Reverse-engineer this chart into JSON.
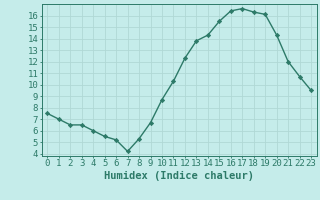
{
  "x": [
    0,
    1,
    2,
    3,
    4,
    5,
    6,
    7,
    8,
    9,
    10,
    11,
    12,
    13,
    14,
    15,
    16,
    17,
    18,
    19,
    20,
    21,
    22,
    23
  ],
  "y": [
    7.5,
    7.0,
    6.5,
    6.5,
    6.0,
    5.5,
    5.2,
    4.2,
    5.3,
    6.7,
    8.7,
    10.3,
    12.3,
    13.8,
    14.3,
    15.5,
    16.4,
    16.6,
    16.3,
    16.1,
    14.3,
    12.0,
    10.7,
    9.5
  ],
  "line_color": "#2d7a68",
  "bg_color": "#c5ecea",
  "grid_color": "#b0d8d5",
  "xlabel": "Humidex (Indice chaleur)",
  "xlim": [
    -0.5,
    23.5
  ],
  "ylim": [
    3.8,
    17.0
  ],
  "yticks": [
    4,
    5,
    6,
    7,
    8,
    9,
    10,
    11,
    12,
    13,
    14,
    15,
    16
  ],
  "xticks": [
    0,
    1,
    2,
    3,
    4,
    5,
    6,
    7,
    8,
    9,
    10,
    11,
    12,
    13,
    14,
    15,
    16,
    17,
    18,
    19,
    20,
    21,
    22,
    23
  ],
  "marker": "D",
  "marker_size": 2.2,
  "line_width": 1.0,
  "xlabel_fontsize": 7.5,
  "tick_fontsize": 6.5,
  "axis_color": "#2d7a68",
  "spine_color": "#2d7a68"
}
